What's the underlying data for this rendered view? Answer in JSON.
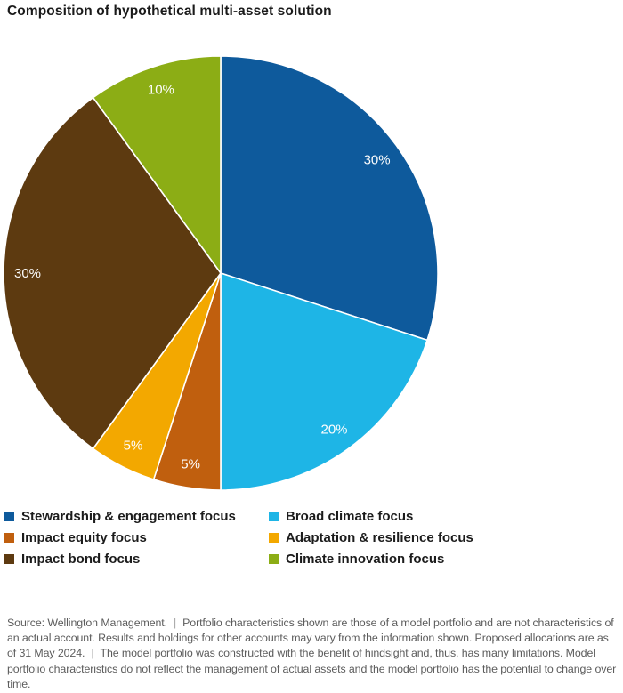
{
  "title": "Composition of hypothetical multi-asset solution",
  "chart_data": {
    "type": "pie",
    "title": "Composition of hypothetical multi-asset solution",
    "direction": "clockwise",
    "start_angle_deg": 0,
    "legend_position": "bottom",
    "data_labels_position": "inside",
    "data_label_color": "#ffffff",
    "slices": [
      {
        "label": "Stewardship & engagement focus",
        "value": 30,
        "data_label": "30%",
        "color": "#0e5a9c"
      },
      {
        "label": "Broad climate focus",
        "value": 20,
        "data_label": "20%",
        "color": "#1eb5e6"
      },
      {
        "label": "Impact equity focus",
        "value": 5,
        "data_label": "5%",
        "color": "#c05f0e"
      },
      {
        "label": "Adaptation & resilience focus",
        "value": 5,
        "data_label": "5%",
        "color": "#f3a800"
      },
      {
        "label": "Impact bond focus",
        "value": 30,
        "data_label": "30%",
        "color": "#5d3a10"
      },
      {
        "label": "Climate innovation focus",
        "value": 10,
        "data_label": "10%",
        "color": "#8cad15"
      }
    ]
  },
  "legend": {
    "columns": [
      [
        {
          "label": "Stewardship & engagement focus",
          "color": "#0e5a9c"
        },
        {
          "label": "Impact equity focus",
          "color": "#c05f0e"
        },
        {
          "label": "Impact bond focus",
          "color": "#5d3a10"
        }
      ],
      [
        {
          "label": "Broad climate focus",
          "color": "#1eb5e6"
        },
        {
          "label": "Adaptation & resilience focus",
          "color": "#f3a800"
        },
        {
          "label": "Climate innovation focus",
          "color": "#8cad15"
        }
      ]
    ]
  },
  "footer": {
    "separator": "|",
    "segments": [
      "Source: Wellington Management.",
      "Portfolio characteristics shown are those of a model portfolio and are not characteristics of an actual account. Results and holdings for other accounts may vary from the information shown. Proposed allocations are as of 31 May 2024.",
      "The model portfolio was constructed with the benefit of hindsight and, thus, has many limitations. Model portfolio characteristics do not reflect the management of actual assets and the model portfolio has the potential to change over time."
    ]
  }
}
